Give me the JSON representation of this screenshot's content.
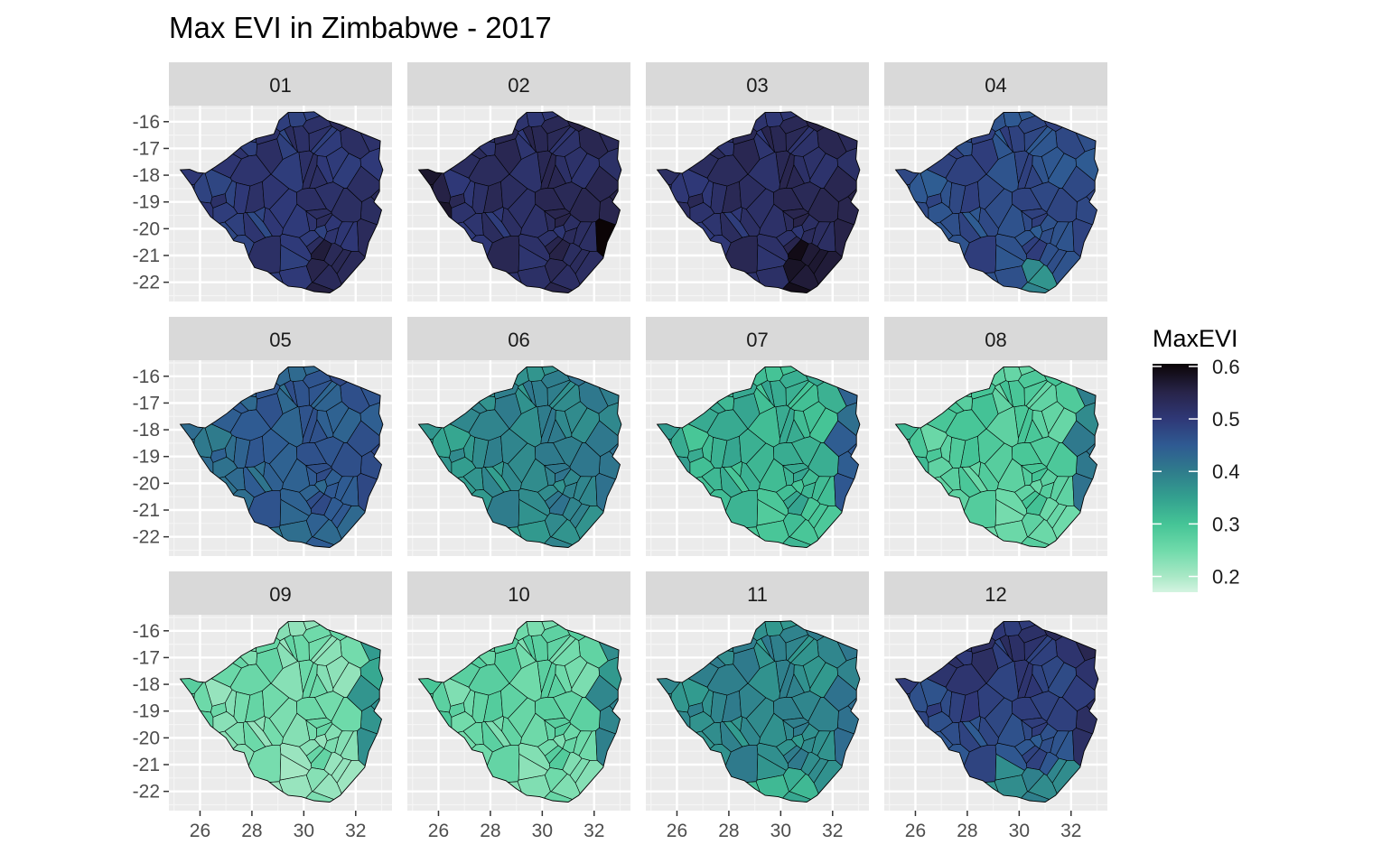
{
  "title": "Max EVI in Zimbabwe - 2017",
  "panel_labels": [
    "01",
    "02",
    "03",
    "04",
    "05",
    "06",
    "07",
    "08",
    "09",
    "10",
    "11",
    "12"
  ],
  "y_ticks": [
    {
      "value": -16,
      "label": "-16"
    },
    {
      "value": -17,
      "label": "-17"
    },
    {
      "value": -18,
      "label": "-18"
    },
    {
      "value": -19,
      "label": "-19"
    },
    {
      "value": -20,
      "label": "-20"
    },
    {
      "value": -21,
      "label": "-21"
    },
    {
      "value": -22,
      "label": "-22"
    }
  ],
  "x_ticks": [
    {
      "value": 26,
      "label": "26"
    },
    {
      "value": 28,
      "label": "28"
    },
    {
      "value": 30,
      "label": "30"
    },
    {
      "value": 32,
      "label": "32"
    }
  ],
  "x_range": [
    24.8,
    33.4
  ],
  "y_range": [
    -22.72,
    -15.4
  ],
  "legend": {
    "title": "MaxEVI",
    "min": 0.17,
    "max": 0.605,
    "ticks": [
      {
        "value": 0.6,
        "label": "0.6"
      },
      {
        "value": 0.5,
        "label": "0.5"
      },
      {
        "value": 0.4,
        "label": "0.4"
      },
      {
        "value": 0.3,
        "label": "0.3"
      },
      {
        "value": 0.2,
        "label": "0.2"
      }
    ],
    "palette": [
      {
        "v": 0.17,
        "c": "#d4f4e1"
      },
      {
        "v": 0.2,
        "c": "#a9e8c6"
      },
      {
        "v": 0.25,
        "c": "#6fdaaa"
      },
      {
        "v": 0.3,
        "c": "#45c496"
      },
      {
        "v": 0.35,
        "c": "#33a08f"
      },
      {
        "v": 0.4,
        "c": "#2f7c8c"
      },
      {
        "v": 0.45,
        "c": "#2f5a92"
      },
      {
        "v": 0.5,
        "c": "#2f3877"
      },
      {
        "v": 0.55,
        "c": "#28244a"
      },
      {
        "v": 0.605,
        "c": "#0b0406"
      }
    ]
  },
  "chart_data": {
    "type": "choropleth-facets",
    "variable": "MaxEVI",
    "facet_by": "month",
    "months": [
      "01",
      "02",
      "03",
      "04",
      "05",
      "06",
      "07",
      "08",
      "09",
      "10",
      "11",
      "12"
    ],
    "approx_mean_maxevi_by_month": [
      0.5,
      0.52,
      0.52,
      0.47,
      0.44,
      0.38,
      0.32,
      0.28,
      0.24,
      0.26,
      0.38,
      0.48
    ]
  },
  "zimbabwe_outline": [
    [
      25.24,
      -17.8
    ],
    [
      25.6,
      -17.78
    ],
    [
      25.9,
      -17.9
    ],
    [
      26.2,
      -17.93
    ],
    [
      26.6,
      -17.68
    ],
    [
      27.05,
      -17.38
    ],
    [
      27.6,
      -16.93
    ],
    [
      28.15,
      -16.63
    ],
    [
      28.85,
      -16.46
    ],
    [
      29.05,
      -15.95
    ],
    [
      29.4,
      -15.65
    ],
    [
      30.0,
      -15.65
    ],
    [
      30.4,
      -15.63
    ],
    [
      30.9,
      -15.95
    ],
    [
      31.4,
      -16.1
    ],
    [
      31.9,
      -16.3
    ],
    [
      32.4,
      -16.5
    ],
    [
      32.95,
      -16.72
    ],
    [
      32.9,
      -17.4
    ],
    [
      33.05,
      -17.8
    ],
    [
      32.92,
      -18.2
    ],
    [
      32.92,
      -18.6
    ],
    [
      32.7,
      -19.0
    ],
    [
      33.0,
      -19.3
    ],
    [
      32.85,
      -19.8
    ],
    [
      32.5,
      -20.5
    ],
    [
      32.35,
      -21.1
    ],
    [
      31.9,
      -21.6
    ],
    [
      31.4,
      -22.15
    ],
    [
      31.0,
      -22.4
    ],
    [
      30.4,
      -22.35
    ],
    [
      29.9,
      -22.2
    ],
    [
      29.4,
      -22.15
    ],
    [
      29.0,
      -21.9
    ],
    [
      28.6,
      -21.6
    ],
    [
      28.1,
      -21.45
    ],
    [
      27.9,
      -21.1
    ],
    [
      27.7,
      -20.55
    ],
    [
      27.3,
      -20.45
    ],
    [
      27.0,
      -20.0
    ],
    [
      26.4,
      -19.55
    ],
    [
      25.95,
      -18.9
    ],
    [
      25.7,
      -18.4
    ]
  ]
}
